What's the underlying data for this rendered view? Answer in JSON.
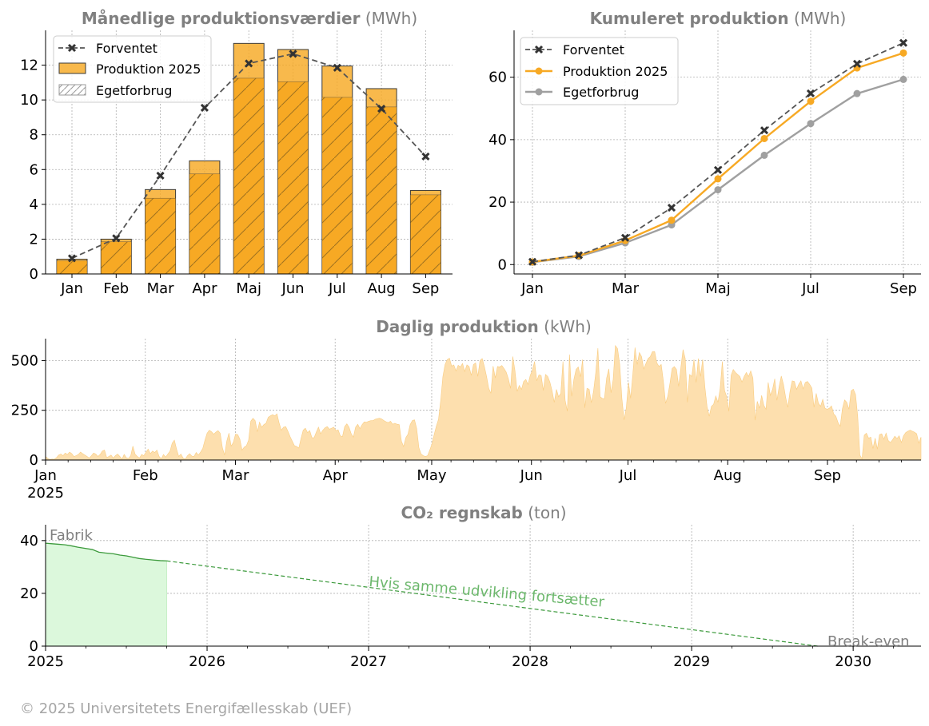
{
  "colors": {
    "orange": "#f7a924",
    "orange_light": "#fddfae",
    "grey_dark": "#555555",
    "grey_mid": "#a0a0a0",
    "title_grey": "#808080",
    "green_line": "#3c9a3c",
    "green_fill": "#dcf8dc",
    "green_text": "#6db86d"
  },
  "footer": "© 2025 Universitetets Energifællesskab (UEF)",
  "chart_data": [
    {
      "id": "monthly",
      "type": "bar",
      "title": "Månedlige produktionsværdier",
      "unit": "(MWh)",
      "categories": [
        "Jan",
        "Feb",
        "Mar",
        "Apr",
        "Maj",
        "Jun",
        "Jul",
        "Aug",
        "Sep"
      ],
      "series": [
        {
          "name": "Forventet",
          "kind": "dashed-line",
          "values": [
            0.9,
            2.05,
            5.65,
            9.55,
            12.1,
            12.65,
            11.85,
            9.5,
            6.75
          ]
        },
        {
          "name": "Produktion 2025",
          "kind": "bar",
          "values": [
            0.85,
            2.0,
            4.85,
            6.5,
            13.25,
            12.9,
            11.95,
            10.65,
            4.8
          ]
        },
        {
          "name": "Egetforbrug",
          "kind": "hatched-bar",
          "values": [
            0.75,
            1.85,
            4.35,
            5.75,
            11.25,
            11.05,
            10.15,
            9.6,
            4.55
          ]
        }
      ],
      "ylim": [
        0,
        14
      ],
      "yticks": [
        0,
        2,
        4,
        6,
        8,
        10,
        12
      ],
      "grid": true,
      "legend": "top-left"
    },
    {
      "id": "cumulative",
      "type": "line",
      "title": "Kumuleret produktion",
      "unit": "(MWh)",
      "x": [
        "Jan",
        "Feb",
        "Mar",
        "Apr",
        "Maj",
        "Jun",
        "Jul",
        "Aug",
        "Sep"
      ],
      "xticklabels": [
        "Jan",
        "Mar",
        "Maj",
        "Jul",
        "Sep"
      ],
      "series": [
        {
          "name": "Forventet",
          "values": [
            0.9,
            3.0,
            8.6,
            18.2,
            30.3,
            43.0,
            54.8,
            64.3,
            71.0
          ]
        },
        {
          "name": "Produktion 2025",
          "values": [
            0.85,
            2.85,
            7.7,
            14.2,
            27.45,
            40.35,
            52.3,
            62.95,
            67.75
          ]
        },
        {
          "name": "Egetforbrug",
          "values": [
            0.75,
            2.6,
            6.95,
            12.7,
            23.95,
            35.0,
            45.15,
            54.75,
            59.3
          ]
        }
      ],
      "ylim": [
        -3,
        75
      ],
      "yticks": [
        0,
        20,
        40,
        60
      ],
      "grid": true,
      "legend": "top-left"
    },
    {
      "id": "daily",
      "type": "area",
      "title": "Daglig produktion",
      "unit": "(kWh)",
      "x_start": "2025-01-01",
      "x_end": "2025-10-15",
      "xticklabels": [
        "Jan",
        "Feb",
        "Mar",
        "Apr",
        "May",
        "Jun",
        "Jul",
        "Aug",
        "Sep"
      ],
      "year_label": "2025",
      "ylim": [
        0,
        610
      ],
      "yticks": [
        0,
        250,
        500
      ],
      "grid": true,
      "series": [
        {
          "name": "Daglig produktion",
          "values": [
            18,
            8,
            3,
            5,
            4,
            12,
            25,
            30,
            22,
            35,
            28,
            40,
            32,
            18,
            22,
            28,
            40,
            32,
            25,
            18,
            10,
            22,
            35,
            30,
            18,
            28,
            45,
            50,
            12,
            18,
            25,
            10,
            22,
            30,
            18,
            5,
            28,
            12,
            8,
            22,
            70,
            30,
            18,
            10,
            28,
            22,
            40,
            55,
            32,
            45,
            38,
            50,
            18,
            6,
            28,
            15,
            30,
            45,
            85,
            100,
            55,
            18,
            30,
            10,
            5,
            22,
            32,
            20,
            18,
            38,
            25,
            40,
            58,
            100,
            135,
            150,
            142,
            130,
            140,
            148,
            135,
            62,
            25,
            95,
            135,
            70,
            88,
            130,
            128,
            105,
            50,
            65,
            72,
            100,
            195,
            210,
            198,
            142,
            190,
            165,
            178,
            185,
            215,
            222,
            228,
            222,
            232,
            185,
            150,
            165,
            168,
            145,
            118,
            95,
            72,
            68,
            60,
            108,
            150,
            160,
            138,
            148,
            112,
            112,
            140,
            165,
            132,
            150,
            162,
            168,
            155,
            160,
            165,
            148,
            152,
            122,
            118,
            168,
            182,
            165,
            132,
            115,
            165,
            180,
            158,
            178,
            192,
            190,
            195,
            198,
            198,
            205,
            208,
            210,
            206,
            198,
            192,
            188,
            195,
            180,
            185,
            180,
            178,
            95,
            68,
            112,
            130,
            178,
            198,
            202,
            158,
            62,
            30,
            22,
            18,
            22,
            50,
            82,
            128,
            170,
            205,
            300,
            420,
            480,
            505,
            512,
            472,
            478,
            448,
            476,
            468,
            485,
            445,
            478,
            470,
            425,
            480,
            488,
            420,
            500,
            510,
            470,
            420,
            360,
            335,
            472,
            412,
            470,
            468,
            475,
            460,
            442,
            408,
            360,
            520,
            450,
            345,
            375,
            355,
            395,
            405,
            380,
            425,
            452,
            495,
            398,
            428,
            425,
            350,
            430,
            420,
            392,
            348,
            290,
            355,
            318,
            335,
            495,
            300,
            245,
            530,
            320,
            405,
            455,
            468,
            418,
            505,
            262,
            360,
            356,
            288,
            345,
            438,
            562,
            318,
            310,
            308,
            412,
            458,
            338,
            405,
            575,
            560,
            480,
            308,
            202,
            262,
            390,
            310,
            432,
            565,
            480,
            540,
            520,
            458,
            485,
            510,
            520,
            545,
            545,
            488,
            470,
            480,
            395,
            285,
            320,
            385,
            460,
            470,
            455,
            370,
            465,
            555,
            510,
            290,
            430,
            420,
            505,
            390,
            510,
            420,
            505,
            368,
            268,
            220,
            270,
            280,
            322,
            290,
            360,
            495,
            350,
            318,
            245,
            425,
            455,
            440,
            430,
            420,
            392,
            420,
            440,
            420,
            448,
            412,
            200,
            295,
            260,
            325,
            275,
            255,
            390,
            325,
            355,
            408,
            300,
            368,
            422,
            380,
            315,
            265,
            345,
            398,
            395,
            355,
            380,
            398,
            358,
            390,
            395,
            380,
            362,
            265,
            335,
            285,
            270,
            305,
            260,
            255,
            260,
            272,
            232,
            220,
            188,
            170,
            258,
            302,
            290,
            255,
            348,
            356,
            330,
            220,
            25,
            6,
            125,
            135,
            110,
            115,
            58,
            110,
            55,
            128,
            132,
            105,
            135,
            98,
            88,
            102,
            120,
            108,
            122,
            88,
            122,
            138,
            145,
            150,
            145,
            140,
            132,
            85,
            115
          ]
        }
      ]
    },
    {
      "id": "co2",
      "type": "area",
      "title": "CO₂ regnskab",
      "unit": "(ton)",
      "xticklabels": [
        "2025",
        "2026",
        "2027",
        "2028",
        "2029",
        "2030"
      ],
      "xlim": [
        2025,
        2030.42
      ],
      "ylim": [
        0,
        46
      ],
      "yticks": [
        0,
        20,
        40
      ],
      "grid": true,
      "series": [
        {
          "name": "Fabrik",
          "x": [
            2025.0,
            2025.04,
            2025.08,
            2025.12,
            2025.16,
            2025.2,
            2025.25,
            2025.29,
            2025.33,
            2025.37,
            2025.42,
            2025.46,
            2025.5,
            2025.54,
            2025.58,
            2025.62,
            2025.67,
            2025.71,
            2025.75
          ],
          "values": [
            39.0,
            38.8,
            38.6,
            38.4,
            38.0,
            37.5,
            37.0,
            36.6,
            35.6,
            35.3,
            35.0,
            34.5,
            34.2,
            33.7,
            33.2,
            32.9,
            32.6,
            32.4,
            32.3
          ]
        },
        {
          "name": "Hvis samme udvikling fortsætter",
          "x": [
            2025.75,
            2029.78
          ],
          "values": [
            32.3,
            0
          ]
        }
      ],
      "annotations": [
        "Fabrik",
        "Hvis samme udvikling fortsætter",
        "Break-even"
      ]
    }
  ]
}
